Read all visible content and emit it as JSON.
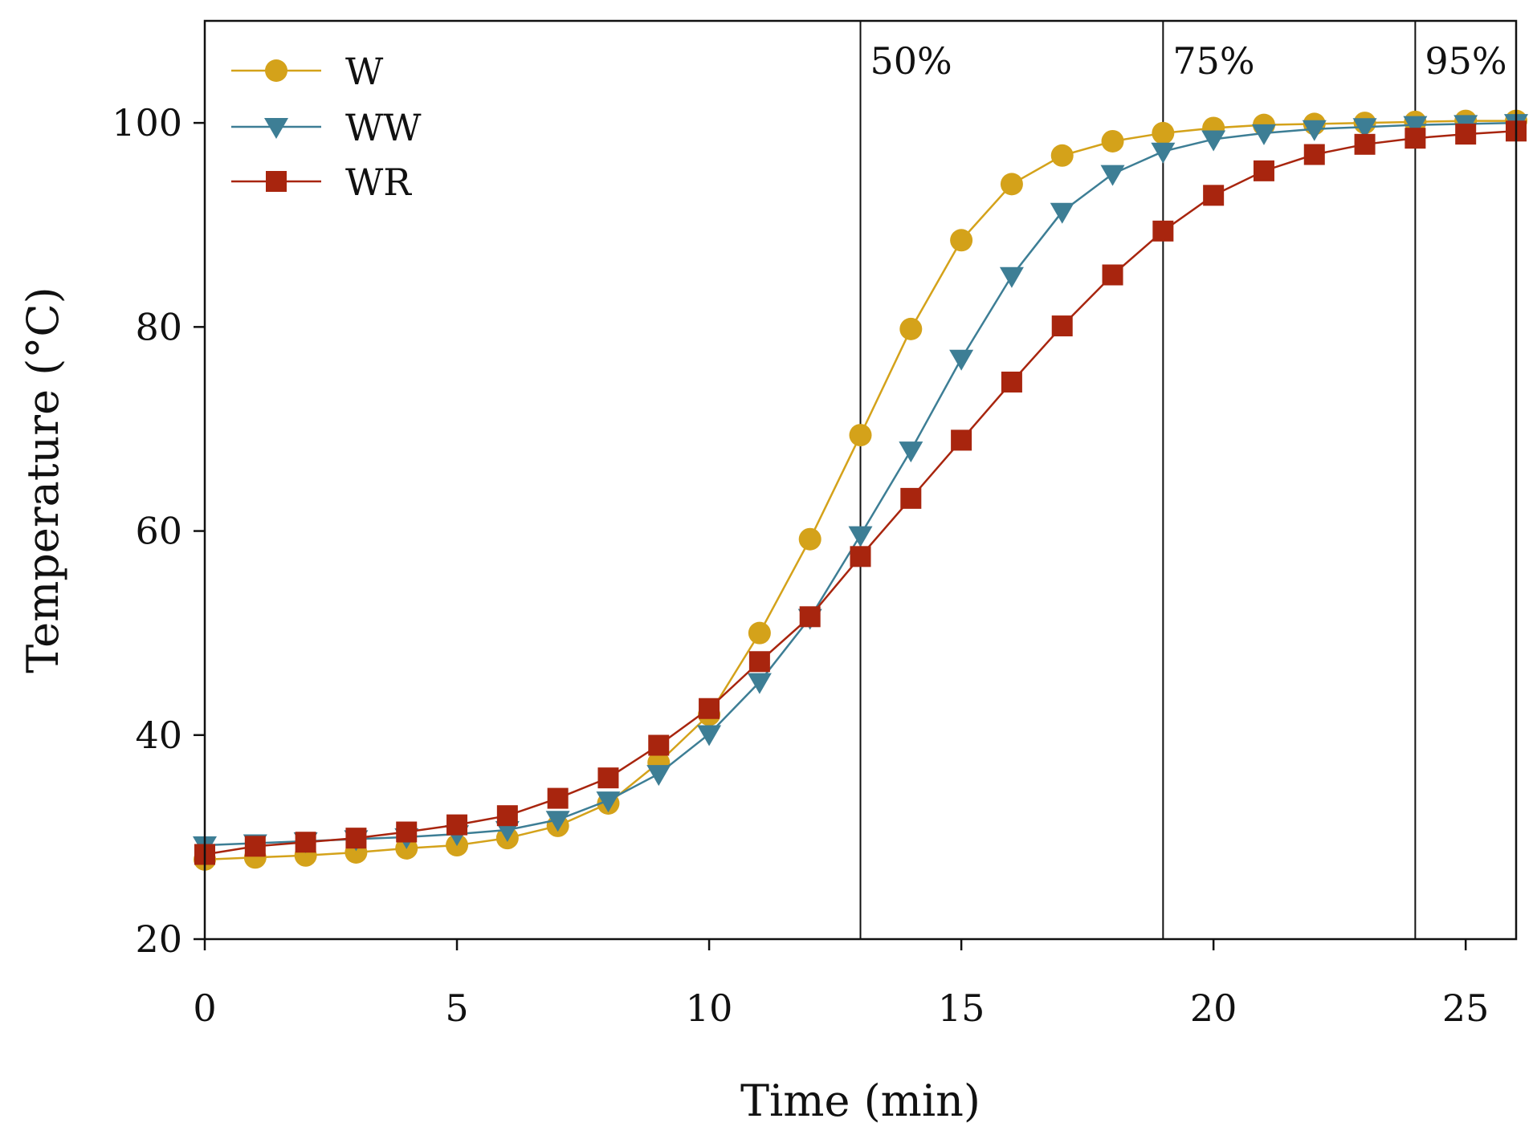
{
  "chart_data": {
    "type": "line",
    "xlabel": "Time (min)",
    "ylabel": "Temperature (°C)",
    "xlim": [
      0,
      26
    ],
    "ylim": [
      20,
      110
    ],
    "xticks": [
      0,
      5,
      10,
      15,
      20,
      25
    ],
    "yticks": [
      20,
      40,
      60,
      80,
      100
    ],
    "grid": false,
    "legend_position": "top-left",
    "x": [
      0,
      1,
      2,
      3,
      4,
      5,
      6,
      7,
      8,
      9,
      10,
      11,
      12,
      13,
      14,
      15,
      16,
      17,
      18,
      19,
      20,
      21,
      22,
      23,
      24,
      25,
      26
    ],
    "series": [
      {
        "name": "W",
        "color": "#D4A21A",
        "marker": "circle",
        "values": [
          27.8,
          28.0,
          28.2,
          28.5,
          28.9,
          29.2,
          29.9,
          31.1,
          33.3,
          37.3,
          42.0,
          50.0,
          59.2,
          69.4,
          79.8,
          88.5,
          94.0,
          96.8,
          98.2,
          99.0,
          99.5,
          99.8,
          99.9,
          100.0,
          100.1,
          100.2,
          100.2
        ]
      },
      {
        "name": "WW",
        "color": "#3D7E95",
        "marker": "triangle-down",
        "values": [
          29.2,
          29.4,
          29.6,
          29.8,
          30.0,
          30.3,
          30.7,
          31.7,
          33.6,
          36.2,
          40.1,
          45.2,
          51.5,
          59.6,
          67.9,
          76.9,
          85.0,
          91.3,
          95.0,
          97.2,
          98.4,
          99.0,
          99.4,
          99.6,
          99.8,
          99.9,
          100.0
        ]
      },
      {
        "name": "WR",
        "color": "#A8250E",
        "marker": "square",
        "values": [
          28.3,
          29.1,
          29.5,
          29.9,
          30.5,
          31.2,
          32.1,
          33.8,
          35.8,
          39.0,
          42.6,
          47.2,
          51.6,
          57.5,
          63.2,
          68.9,
          74.6,
          80.1,
          85.1,
          89.4,
          92.9,
          95.3,
          96.9,
          97.9,
          98.5,
          98.9,
          99.2
        ]
      }
    ],
    "vlines": [
      {
        "x": 13,
        "label": "50%"
      },
      {
        "x": 19,
        "label": "75%"
      },
      {
        "x": 24,
        "label": "95%"
      }
    ]
  }
}
